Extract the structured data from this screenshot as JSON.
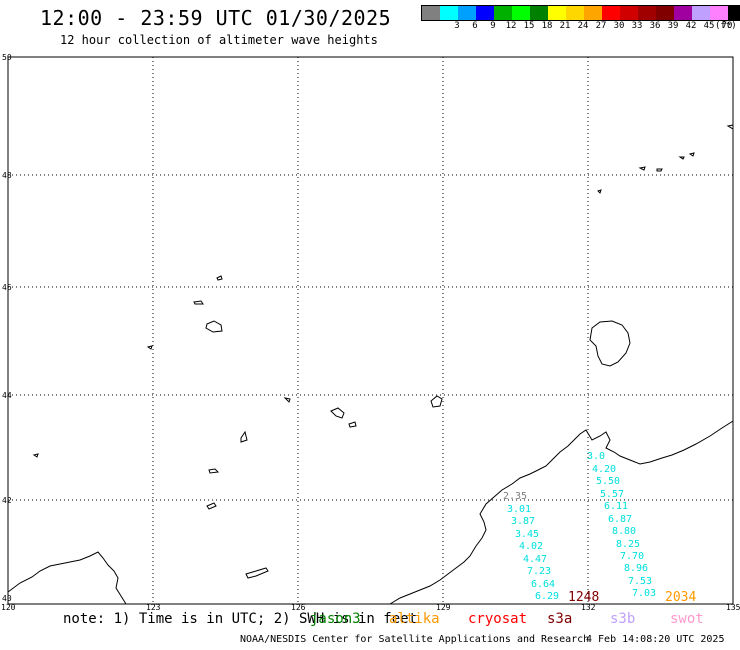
{
  "header": {
    "title": "12:00 - 23:59 UTC 01/30/2025",
    "subtitle": "12 hour collection of altimeter wave heights"
  },
  "scale": {
    "unit": "(ft)",
    "swatches": [
      {
        "color": "#808080",
        "label": ""
      },
      {
        "color": "#00ffff",
        "label": "3"
      },
      {
        "color": "#00a0ff",
        "label": "6"
      },
      {
        "color": "#0000ff",
        "label": "9"
      },
      {
        "color": "#00b000",
        "label": "12"
      },
      {
        "color": "#00ff00",
        "label": "15"
      },
      {
        "color": "#008000",
        "label": "18"
      },
      {
        "color": "#ffff00",
        "label": "21"
      },
      {
        "color": "#ffd700",
        "label": "24"
      },
      {
        "color": "#ffa500",
        "label": "27"
      },
      {
        "color": "#ff0000",
        "label": "30"
      },
      {
        "color": "#d00000",
        "label": "33"
      },
      {
        "color": "#a00000",
        "label": "36"
      },
      {
        "color": "#800000",
        "label": "39"
      },
      {
        "color": "#a000a0",
        "label": "42"
      },
      {
        "color": "#c0a0ff",
        "label": "45"
      },
      {
        "color": "#ff80ff",
        "label": "70"
      },
      {
        "color": "#000000",
        "label": ""
      }
    ]
  },
  "map": {
    "lat_labels": [
      "50",
      "48",
      "46",
      "44",
      "42",
      "40"
    ],
    "lon_labels": [
      "120",
      "123",
      "126",
      "129",
      "132",
      "135"
    ],
    "observations_left": [
      "2.35",
      "3.01",
      "3.87",
      "3.45",
      "4.02",
      "4.47",
      "7.23",
      "6.64",
      "6.29"
    ],
    "observations_right": [
      "3.0",
      "4.20",
      "5.50",
      "5.57",
      "6.11",
      "6.87",
      "8.80",
      "8.25",
      "7.70",
      "8.96",
      "7.53",
      "7.03"
    ],
    "time_markers": [
      {
        "text": "1248",
        "color": "#800000"
      },
      {
        "text": "2034",
        "color": "#ff9900"
      }
    ]
  },
  "footer": {
    "note": "note: 1) Time is in UTC; 2) SWH is in feet",
    "satellites": [
      {
        "name": "jason3",
        "color": "#008000"
      },
      {
        "name": "altika",
        "color": "#ff9900"
      },
      {
        "name": "cryosat",
        "color": "#ff0000"
      },
      {
        "name": "s3a",
        "color": "#800000"
      },
      {
        "name": "s3b",
        "color": "#c0a0ff"
      },
      {
        "name": "swot",
        "color": "#ff99cc"
      }
    ],
    "credit": "NOAA/NESDIS Center for Satellite Applications and Research",
    "timestamp": "4 Feb 14:08:20 UTC 2025"
  }
}
